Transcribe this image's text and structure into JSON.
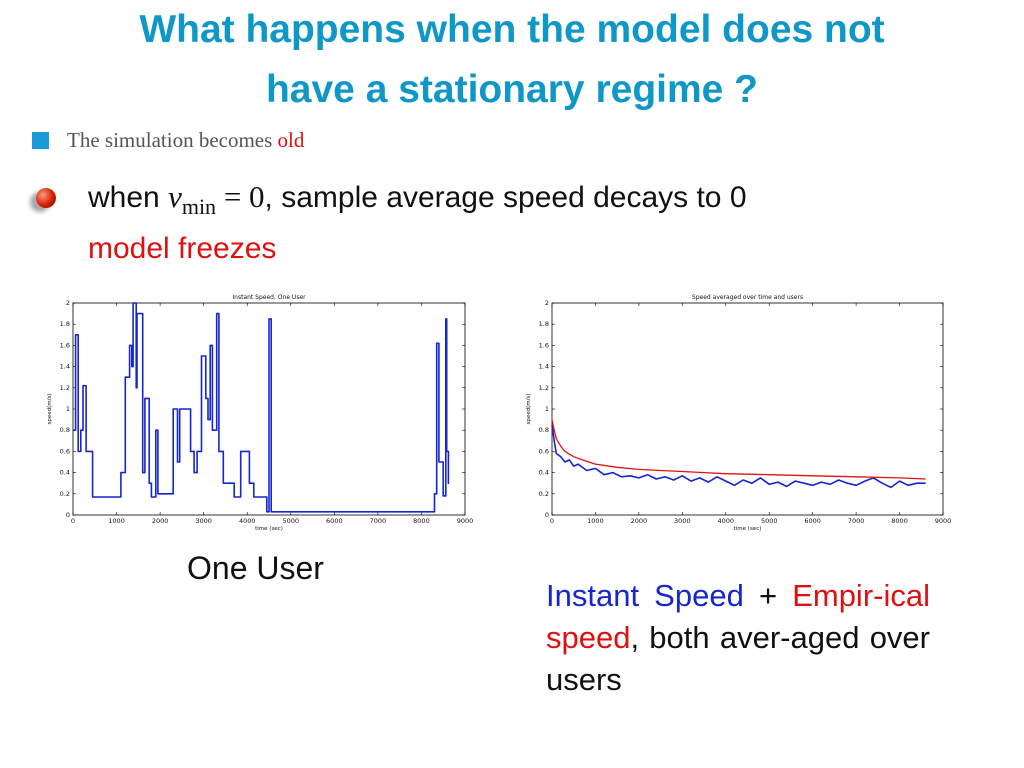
{
  "title": {
    "line1": "What happens when the model does not",
    "line2": "have a stationary regime ?"
  },
  "bullet1": {
    "text": "The simulation becomes ",
    "highlight": "old",
    "highlight_color": "#e01010"
  },
  "bullet2": {
    "prefix": "when ",
    "math_var": "v",
    "math_sub": "min",
    "math_rest": " = 0",
    "suffix": ", sample average speed decays to 0",
    "line2": "model freezes"
  },
  "caption_left": "One User",
  "caption_right": {
    "part1": "Instant Speed",
    "part2": " + ",
    "part3": "Empir-ical speed",
    "part4": ", both aver-aged over users"
  },
  "colors": {
    "title": "#0f97c8",
    "bullet_square": "#1a9ad6",
    "instant_series": "#1525d0",
    "empirical_series": "#e01010"
  },
  "chart_data": [
    {
      "type": "line",
      "title": "Instant Speed, One User",
      "xlabel": "time (sec)",
      "ylabel": "speed(m/s)",
      "xlim": [
        0,
        9000
      ],
      "ylim": [
        0,
        2
      ],
      "xticks": [
        0,
        1000,
        2000,
        3000,
        4000,
        5000,
        6000,
        7000,
        8000,
        9000
      ],
      "yticks": [
        0,
        0.2,
        0.4,
        0.6,
        0.8,
        1,
        1.2,
        1.4,
        1.6,
        1.8,
        2
      ],
      "grid": false,
      "series": [
        {
          "color": "#1525d0",
          "x": [
            0,
            60,
            60,
            120,
            120,
            180,
            180,
            230,
            230,
            300,
            300,
            450,
            450,
            500,
            500,
            1100,
            1100,
            1200,
            1200,
            1300,
            1300,
            1350,
            1350,
            1380,
            1380,
            1450,
            1450,
            1470,
            1470,
            1600,
            1600,
            1650,
            1650,
            1750,
            1750,
            1800,
            1800,
            1900,
            1900,
            1950,
            1950,
            2300,
            2300,
            2400,
            2400,
            2450,
            2450,
            2500,
            2500,
            2700,
            2700,
            2780,
            2780,
            2850,
            2850,
            2950,
            2950,
            3050,
            3050,
            3100,
            3100,
            3150,
            3150,
            3200,
            3200,
            3300,
            3300,
            3350,
            3350,
            3450,
            3450,
            3700,
            3700,
            3850,
            3850,
            4050,
            4050,
            4150,
            4150,
            4450,
            4450,
            4500,
            4500,
            4550,
            4550,
            8200,
            8200,
            8300,
            8300,
            8350,
            8350,
            8400,
            8400,
            8500,
            8500,
            8560,
            8560,
            8580,
            8580,
            8620,
            8620,
            8640
          ],
          "y": [
            0.8,
            0.8,
            1.7,
            1.7,
            0.6,
            0.6,
            0.8,
            0.8,
            1.22,
            1.22,
            0.6,
            0.6,
            0.17,
            0.17,
            0.17,
            0.17,
            0.4,
            0.4,
            1.3,
            1.3,
            1.6,
            1.6,
            1.4,
            1.4,
            2.0,
            2.0,
            1.2,
            1.2,
            1.9,
            1.9,
            0.4,
            0.4,
            1.1,
            1.1,
            0.3,
            0.3,
            0.17,
            0.17,
            0.8,
            0.8,
            0.2,
            0.2,
            1.0,
            1.0,
            0.5,
            0.5,
            1.0,
            1.0,
            1.0,
            1.0,
            0.6,
            0.6,
            0.4,
            0.4,
            0.6,
            0.6,
            1.5,
            1.5,
            1.1,
            1.1,
            0.9,
            0.9,
            1.6,
            1.6,
            0.8,
            0.8,
            1.9,
            1.9,
            0.6,
            0.6,
            0.3,
            0.3,
            0.17,
            0.17,
            0.6,
            0.6,
            0.3,
            0.3,
            0.17,
            0.17,
            0.03,
            0.03,
            1.85,
            1.85,
            0.03,
            0.03,
            0.03,
            0.03,
            0.2,
            0.2,
            1.62,
            1.62,
            0.5,
            0.5,
            0.18,
            0.18,
            1.85,
            1.85,
            0.6,
            0.6,
            0.3,
            0.3
          ]
        }
      ]
    },
    {
      "type": "line",
      "title": "Speed averaged over time and users",
      "xlabel": "time (sec)",
      "ylabel": "speed(m/s)",
      "xlim": [
        0,
        9000
      ],
      "ylim": [
        0,
        2
      ],
      "xticks": [
        0,
        1000,
        2000,
        3000,
        4000,
        5000,
        6000,
        7000,
        8000,
        9000
      ],
      "yticks": [
        0,
        0.2,
        0.4,
        0.6,
        0.8,
        1,
        1.2,
        1.4,
        1.6,
        1.8,
        2
      ],
      "grid": false,
      "series": [
        {
          "color": "#1525d0",
          "x": [
            0,
            50,
            100,
            200,
            300,
            400,
            500,
            600,
            800,
            1000,
            1200,
            1400,
            1600,
            1800,
            2000,
            2200,
            2400,
            2600,
            2800,
            3000,
            3200,
            3400,
            3600,
            3800,
            4000,
            4200,
            4400,
            4600,
            4800,
            5000,
            5200,
            5400,
            5600,
            5800,
            6000,
            6200,
            6400,
            6600,
            6800,
            7000,
            7200,
            7400,
            7600,
            7800,
            8000,
            8200,
            8400,
            8600
          ],
          "y": [
            0.85,
            0.7,
            0.58,
            0.55,
            0.5,
            0.52,
            0.46,
            0.48,
            0.42,
            0.44,
            0.38,
            0.4,
            0.36,
            0.37,
            0.35,
            0.38,
            0.34,
            0.36,
            0.33,
            0.37,
            0.32,
            0.35,
            0.31,
            0.36,
            0.32,
            0.28,
            0.33,
            0.3,
            0.35,
            0.29,
            0.31,
            0.27,
            0.32,
            0.3,
            0.28,
            0.31,
            0.29,
            0.33,
            0.3,
            0.28,
            0.32,
            0.35,
            0.3,
            0.26,
            0.32,
            0.28,
            0.3,
            0.3
          ]
        },
        {
          "color": "#e01010",
          "x": [
            0,
            50,
            100,
            200,
            300,
            500,
            700,
            1000,
            1500,
            2000,
            2500,
            3000,
            3500,
            4000,
            5000,
            6000,
            7000,
            8000,
            8600
          ],
          "y": [
            0.9,
            0.8,
            0.72,
            0.65,
            0.6,
            0.55,
            0.52,
            0.48,
            0.45,
            0.43,
            0.42,
            0.41,
            0.4,
            0.39,
            0.38,
            0.37,
            0.36,
            0.35,
            0.34
          ]
        }
      ]
    }
  ]
}
